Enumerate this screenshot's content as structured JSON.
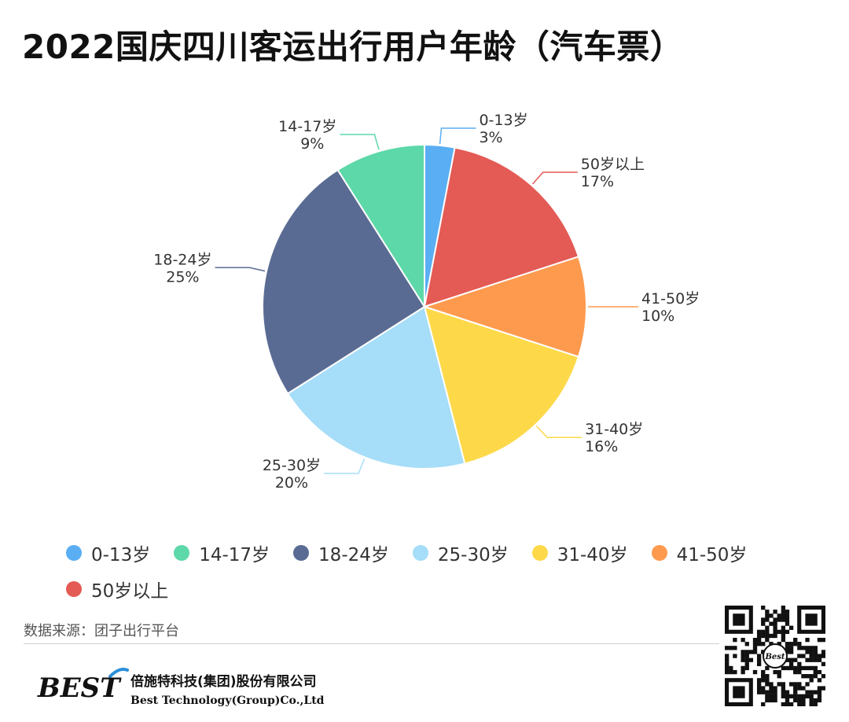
{
  "header": {
    "title": "2022国庆四川客运出行用户年龄（汽车票）"
  },
  "chart_data": {
    "type": "pie",
    "title": "2022国庆四川客运出行用户年龄（汽车票）",
    "slices": [
      {
        "label": "0-13岁",
        "value": 3,
        "value_label": "3%",
        "color": "#5aaef3"
      },
      {
        "label": "50岁以上",
        "value": 17,
        "value_label": "17%",
        "color": "#e45a55"
      },
      {
        "label": "41-50岁",
        "value": 10,
        "value_label": "10%",
        "color": "#fd9a4e"
      },
      {
        "label": "31-40岁",
        "value": 16,
        "value_label": "16%",
        "color": "#fdd94a"
      },
      {
        "label": "25-30岁",
        "value": 20,
        "value_label": "20%",
        "color": "#a6ddf8"
      },
      {
        "label": "18-24岁",
        "value": 25,
        "value_label": "25%",
        "color": "#5a6b93"
      },
      {
        "label": "14-17岁",
        "value": 9,
        "value_label": "9%",
        "color": "#5dd8a8"
      }
    ],
    "legend": {
      "placement": "bottom",
      "order": [
        "0-13岁",
        "14-17岁",
        "18-24岁",
        "25-30岁",
        "31-40岁",
        "41-50岁",
        "50岁以上"
      ]
    }
  },
  "footer": {
    "source": "数据来源：团子出行平台",
    "logo_text": "BEST",
    "company_cn": "倍施特科技(集团)股份有限公司",
    "company_en": "Best Technology(Group)Co.,Ltd",
    "qr_badge": "Best"
  }
}
